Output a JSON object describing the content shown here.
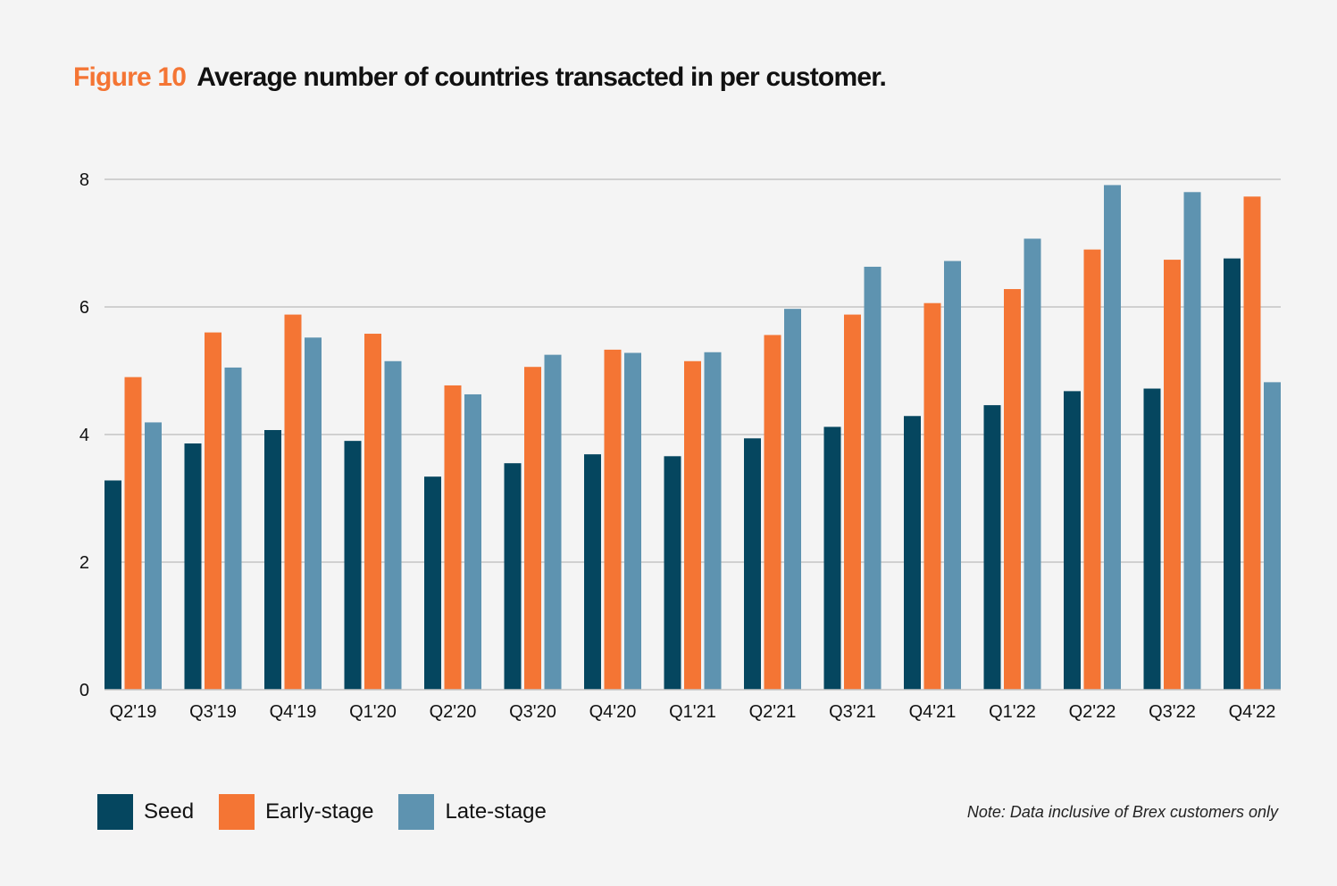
{
  "header": {
    "figure_label": "Figure 10",
    "title": "Average number of countries transacted in per customer."
  },
  "note": "Note: Data inclusive of Brex customers only",
  "colors": {
    "seed": "#05465f",
    "early_stage": "#f47534",
    "late_stage": "#5e93b0",
    "grid": "#c4c4c4",
    "background": "#f4f4f4"
  },
  "chart_data": {
    "type": "bar",
    "title": "Average number of countries transacted in per customer.",
    "xlabel": "",
    "ylabel": "",
    "ylim": [
      0,
      8
    ],
    "yticks": [
      0,
      2,
      4,
      6,
      8
    ],
    "grid": true,
    "legend_position": "bottom-left",
    "categories": [
      "Q2'19",
      "Q3'19",
      "Q4'19",
      "Q1'20",
      "Q2'20",
      "Q3'20",
      "Q4'20",
      "Q1'21",
      "Q2'21",
      "Q3'21",
      "Q4'21",
      "Q1'22",
      "Q2'22",
      "Q3'22",
      "Q4'22"
    ],
    "series": [
      {
        "name": "Seed",
        "color": "#05465f",
        "values": [
          3.28,
          3.86,
          4.07,
          3.9,
          3.34,
          3.55,
          3.69,
          3.66,
          3.94,
          4.12,
          4.29,
          4.46,
          4.68,
          4.72,
          6.76
        ]
      },
      {
        "name": "Early-stage",
        "color": "#f47534",
        "values": [
          4.9,
          5.6,
          5.88,
          5.58,
          4.77,
          5.06,
          5.33,
          5.15,
          5.56,
          5.88,
          6.06,
          6.28,
          6.9,
          6.74,
          7.73
        ]
      },
      {
        "name": "Late-stage",
        "color": "#5e93b0",
        "values": [
          4.19,
          5.05,
          5.52,
          5.15,
          4.63,
          5.25,
          5.28,
          5.29,
          5.97,
          6.63,
          6.72,
          7.07,
          7.91,
          7.8,
          4.82
        ]
      }
    ]
  }
}
